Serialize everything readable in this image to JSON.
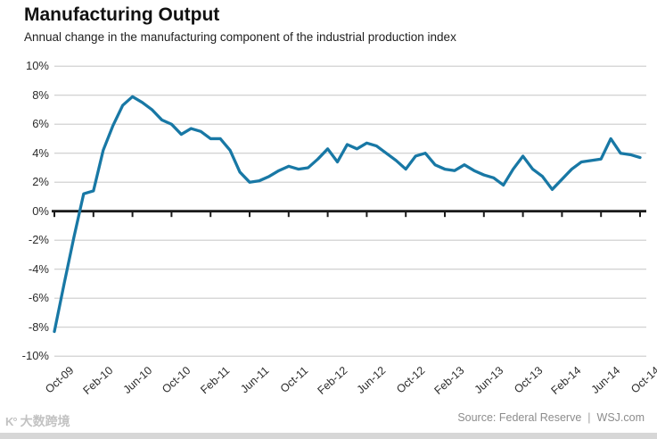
{
  "header": {
    "title": "Manufacturing Output",
    "subtitle": "Annual change in the manufacturing component of the industrial production index"
  },
  "footer": {
    "source_label": "Source: Federal Reserve",
    "separator": "|",
    "brand": "WSJ.com",
    "watermark_logo": "K°",
    "watermark_text": "大数跨境"
  },
  "chart_data": {
    "type": "line",
    "title": "Manufacturing Output",
    "series_name": "Annual % change in manufacturing industrial production",
    "x": [
      "Oct-09",
      "Nov-09",
      "Dec-09",
      "Jan-10",
      "Feb-10",
      "Mar-10",
      "Apr-10",
      "May-10",
      "Jun-10",
      "Jul-10",
      "Aug-10",
      "Sep-10",
      "Oct-10",
      "Nov-10",
      "Dec-10",
      "Jan-11",
      "Feb-11",
      "Mar-11",
      "Apr-11",
      "May-11",
      "Jun-11",
      "Jul-11",
      "Aug-11",
      "Sep-11",
      "Oct-11",
      "Nov-11",
      "Dec-11",
      "Jan-12",
      "Feb-12",
      "Mar-12",
      "Apr-12",
      "May-12",
      "Jun-12",
      "Jul-12",
      "Aug-12",
      "Sep-12",
      "Oct-12",
      "Nov-12",
      "Dec-12",
      "Jan-13",
      "Feb-13",
      "Mar-13",
      "Apr-13",
      "May-13",
      "Jun-13",
      "Jul-13",
      "Aug-13",
      "Sep-13",
      "Oct-13",
      "Nov-13",
      "Dec-13",
      "Jan-14",
      "Feb-14",
      "Mar-14",
      "Apr-14",
      "May-14",
      "Jun-14",
      "Jul-14",
      "Aug-14",
      "Sep-14",
      "Oct-14"
    ],
    "values": [
      -8.3,
      -5.0,
      -1.8,
      1.2,
      1.4,
      4.2,
      5.9,
      7.3,
      7.9,
      7.5,
      7.0,
      6.3,
      6.0,
      5.3,
      5.7,
      5.5,
      5.0,
      5.0,
      4.2,
      2.7,
      2.0,
      2.1,
      2.4,
      2.8,
      3.1,
      2.9,
      3.0,
      3.6,
      4.3,
      3.4,
      4.6,
      4.3,
      4.7,
      4.5,
      4.0,
      3.5,
      2.9,
      3.8,
      4.0,
      3.2,
      2.9,
      2.8,
      3.2,
      2.8,
      2.5,
      2.3,
      1.8,
      2.9,
      3.8,
      2.9,
      2.4,
      1.5,
      2.2,
      2.9,
      3.4,
      3.5,
      3.6,
      5.0,
      4.0,
      3.9,
      3.7
    ],
    "x_ticks": [
      "Oct-09",
      "Feb-10",
      "Jun-10",
      "Oct-10",
      "Feb-11",
      "Jun-11",
      "Oct-11",
      "Feb-12",
      "Jun-12",
      "Oct-12",
      "Feb-13",
      "Jun-13",
      "Oct-13",
      "Feb-14",
      "Jun-14",
      "Oct-14"
    ],
    "x_tick_every_n_points": 4,
    "y_ticks": [
      {
        "label": "10%",
        "value": 10
      },
      {
        "label": "8%",
        "value": 8
      },
      {
        "label": "6%",
        "value": 6
      },
      {
        "label": "4%",
        "value": 4
      },
      {
        "label": "2%",
        "value": 2
      },
      {
        "label": "0%",
        "value": 0
      },
      {
        "label": "-2%",
        "value": -2
      },
      {
        "label": "-4%",
        "value": -4
      },
      {
        "label": "-6%",
        "value": -6
      },
      {
        "label": "-8%",
        "value": -8
      },
      {
        "label": "-10%",
        "value": -10
      }
    ],
    "ylim": [
      -10,
      10
    ],
    "xlabel": "",
    "ylabel": "",
    "grid": true,
    "legend": false,
    "colors": {
      "line": "#1878a5",
      "grid": "#cbcbcb",
      "zero_axis": "#1a1a1a",
      "tick_text": "#2b2b2b",
      "source_text": "#8c8c8c",
      "watermark": "#c2c2c2",
      "bottom_bar": "#d7d7d7"
    }
  }
}
